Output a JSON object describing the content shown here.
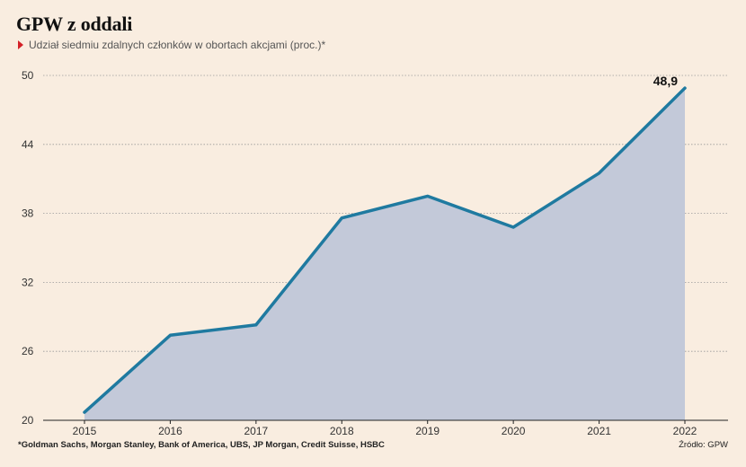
{
  "title": "GPW z oddali",
  "subtitle": "Udział siedmiu zdalnych członków w obortach akcjami (proc.)*",
  "footnote": "*Goldman Sachs, Morgan Stanley, Bank of America, UBS, JP Morgan, Credit Suisse, HSBC",
  "source": "Źródło: GPW",
  "colors": {
    "line": "#1f7aa0",
    "area": "#c3c9d9",
    "accent": "#d42027",
    "background": "#f9ede0"
  },
  "chart_data": {
    "type": "area",
    "title": "GPW z oddali",
    "subtitle": "Udział siedmiu zdalnych członków w obortach akcjami (proc.)*",
    "x": [
      "2015",
      "2016",
      "2017",
      "2018",
      "2019",
      "2020",
      "2021",
      "2022"
    ],
    "series": [
      {
        "values": [
          20.7,
          27.4,
          28.3,
          37.6,
          39.5,
          36.8,
          41.5,
          48.9
        ]
      }
    ],
    "ylim": [
      20,
      50
    ],
    "yticks": [
      20,
      26,
      32,
      38,
      44,
      50
    ],
    "annotations": [
      {
        "x": "2022",
        "text": "48,9"
      }
    ],
    "grid": true,
    "legend": "none"
  }
}
